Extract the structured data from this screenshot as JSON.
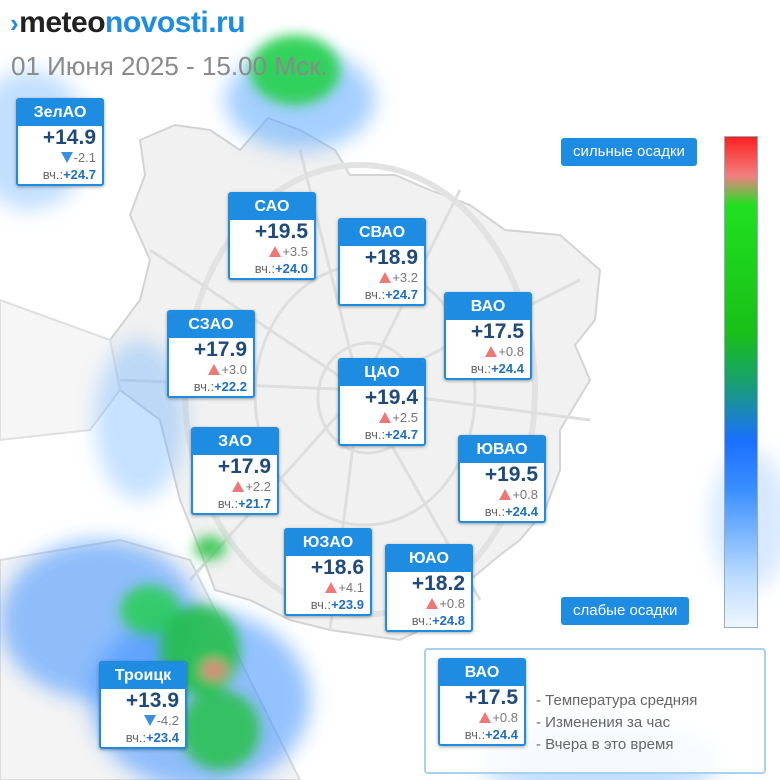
{
  "header": {
    "logo_main": "meteo",
    "logo_accent": "novosti.ru",
    "subtitle": "01 Июня 2025 - 15.00 Мск."
  },
  "colors": {
    "accent": "#1e8ce0",
    "temp_text": "#1f4a7a",
    "rise": "#ee7777",
    "fall": "#3a8fdc"
  },
  "yesterday_prefix": "вч.:",
  "districts": [
    {
      "name": "ЗелАО",
      "temp": "+14.9",
      "trend": "down",
      "change": "-2.1",
      "yesterday": "+24.7"
    },
    {
      "name": "САО",
      "temp": "+19.5",
      "trend": "up",
      "change": "+3.5",
      "yesterday": "+24.0"
    },
    {
      "name": "СВАО",
      "temp": "+18.9",
      "trend": "up",
      "change": "+3.2",
      "yesterday": "+24.7"
    },
    {
      "name": "ВАО",
      "temp": "+17.5",
      "trend": "up",
      "change": "+0.8",
      "yesterday": "+24.4"
    },
    {
      "name": "СЗАО",
      "temp": "+17.9",
      "trend": "up",
      "change": "+3.0",
      "yesterday": "+22.2"
    },
    {
      "name": "ЦАО",
      "temp": "+19.4",
      "trend": "up",
      "change": "+2.5",
      "yesterday": "+24.7"
    },
    {
      "name": "ЗАО",
      "temp": "+17.9",
      "trend": "up",
      "change": "+2.2",
      "yesterday": "+21.7"
    },
    {
      "name": "ЮВАО",
      "temp": "+19.5",
      "trend": "up",
      "change": "+0.8",
      "yesterday": "+24.4"
    },
    {
      "name": "ЮЗАО",
      "temp": "+18.6",
      "trend": "up",
      "change": "+4.1",
      "yesterday": "+23.9"
    },
    {
      "name": "ЮАО",
      "temp": "+18.2",
      "trend": "up",
      "change": "+0.8",
      "yesterday": "+24.8"
    },
    {
      "name": "Троицк",
      "temp": "+13.9",
      "trend": "down",
      "change": "-4.2",
      "yesterday": "+23.4"
    }
  ],
  "precip_scale": {
    "strong_label": "сильные осадки",
    "weak_label": "слабые осадки"
  },
  "legend": {
    "sample": {
      "name": "ВАО",
      "temp": "+17.5",
      "trend": "up",
      "change": "+0.8",
      "yesterday": "+24.4"
    },
    "lines": [
      "- Температура средняя",
      "- Изменения за час",
      "- Вчера в это время"
    ]
  }
}
